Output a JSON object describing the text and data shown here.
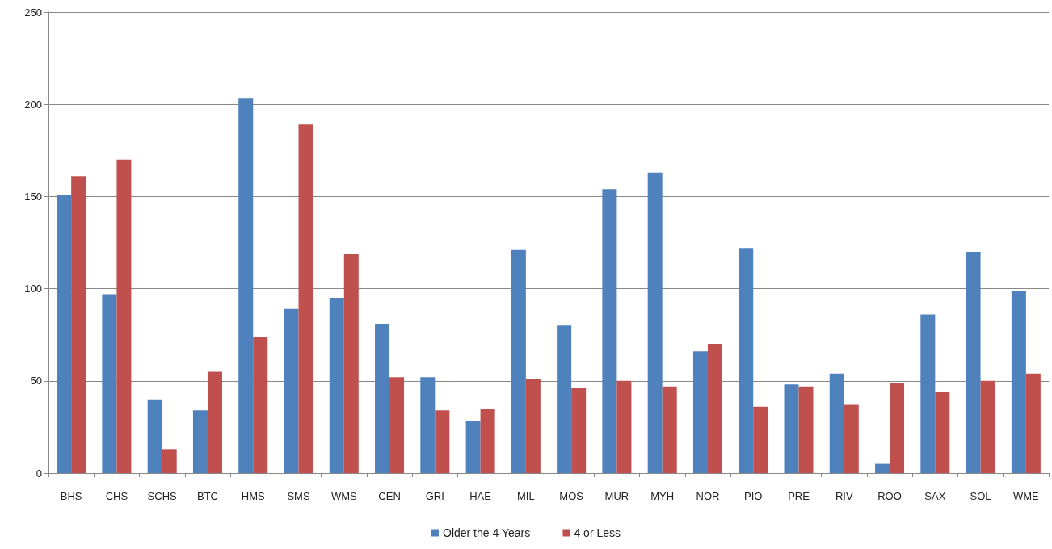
{
  "chart_data": {
    "type": "bar",
    "categories": [
      "BHS",
      "CHS",
      "SCHS",
      "BTC",
      "HMS",
      "SMS",
      "WMS",
      "CEN",
      "GRI",
      "HAE",
      "MIL",
      "MOS",
      "MUR",
      "MYH",
      "NOR",
      "PIO",
      "PRE",
      "RIV",
      "ROO",
      "SAX",
      "SOL",
      "WME"
    ],
    "series": [
      {
        "name": "Older the 4 Years",
        "color": "#4f81bd",
        "values": [
          151,
          97,
          40,
          34,
          203,
          89,
          95,
          81,
          52,
          28,
          121,
          80,
          154,
          163,
          66,
          122,
          48,
          54,
          5,
          86,
          120,
          99
        ]
      },
      {
        "name": "4 or Less",
        "color": "#c0504d",
        "values": [
          161,
          170,
          13,
          55,
          74,
          189,
          119,
          52,
          34,
          35,
          51,
          46,
          50,
          47,
          70,
          36,
          47,
          37,
          49,
          44,
          50,
          54
        ]
      }
    ],
    "ylim": [
      0,
      250
    ],
    "yticks": [
      0,
      50,
      100,
      150,
      200,
      250
    ],
    "grid": "y",
    "legend": "bottom"
  }
}
